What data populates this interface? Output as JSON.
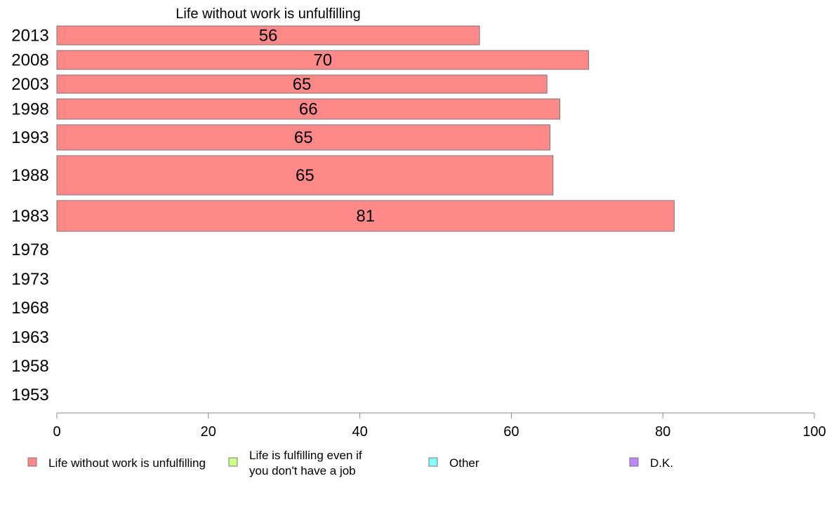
{
  "chart_data": {
    "type": "bar",
    "orientation": "horizontal",
    "title": "Life without work is unfulfilling",
    "categories": [
      "2013",
      "2008",
      "2003",
      "1998",
      "1993",
      "1988",
      "1983",
      "1978",
      "1973",
      "1968",
      "1963",
      "1958",
      "1953"
    ],
    "series": [
      {
        "name": "Life without work is unfulfilling",
        "color": "#ff8888",
        "values": [
          55.8,
          70.2,
          64.7,
          66.4,
          65.1,
          65.5,
          81.5,
          null,
          null,
          null,
          null,
          null,
          null
        ],
        "labels": [
          "56",
          "70",
          "65",
          "66",
          "65",
          "65",
          "81",
          "",
          "",
          "",
          "",
          "",
          ""
        ]
      }
    ],
    "xlim": [
      0,
      100
    ],
    "xticks": [
      "0",
      "20",
      "40",
      "60",
      "80",
      "100"
    ],
    "legend": {
      "placement": "bottom",
      "items": [
        {
          "label": "Life without work is unfulfilling",
          "color": "#ff8888"
        },
        {
          "label": "Life is fulfilling even if you don't have a job",
          "label_lines": [
            "Life is fulfilling even if",
            "you don't have a job"
          ],
          "color": "#ccff88"
        },
        {
          "label": "Other",
          "color": "#88ffff"
        },
        {
          "label": "D.K.",
          "color": "#bb88ff"
        }
      ]
    },
    "grid": false
  }
}
